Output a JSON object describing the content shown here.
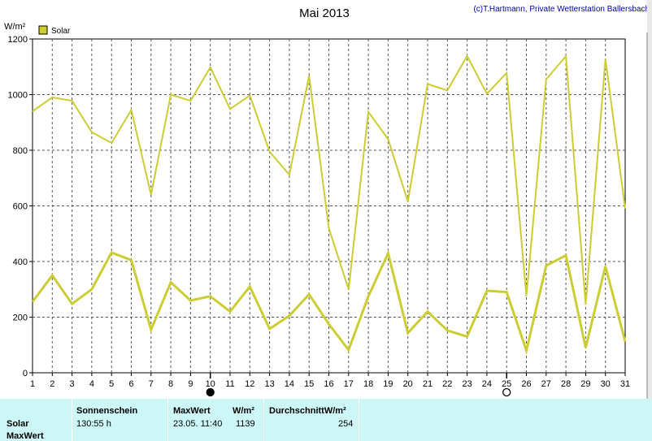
{
  "chart_data": {
    "type": "line",
    "title": "Mai 2013",
    "credit": "(c)T.Hartmann, Private Wetterstation Ballersbach",
    "ylabel": "W/m²",
    "legend": {
      "label": "Solar",
      "color": "#cccc33"
    },
    "ylim": [
      0,
      1200
    ],
    "yticks": [
      0,
      200,
      400,
      600,
      800,
      1000,
      1200
    ],
    "x": [
      1,
      2,
      3,
      4,
      5,
      6,
      7,
      8,
      9,
      10,
      11,
      12,
      13,
      14,
      15,
      16,
      17,
      18,
      19,
      20,
      21,
      22,
      23,
      24,
      25,
      26,
      27,
      28,
      29,
      30,
      31
    ],
    "series": [
      {
        "values": [
          940,
          990,
          978,
          865,
          826,
          945,
          640,
          1000,
          978,
          1098,
          948,
          997,
          795,
          712,
          1068,
          520,
          300,
          938,
          840,
          615,
          1038,
          1015,
          1139,
          1003,
          1078,
          275,
          1055,
          1138,
          245,
          1128,
          590
        ],
        "color": "#cccc33",
        "width": 2
      },
      {
        "values": [
          255,
          350,
          248,
          300,
          432,
          405,
          155,
          325,
          260,
          275,
          220,
          310,
          158,
          205,
          282,
          175,
          82,
          275,
          430,
          143,
          220,
          152,
          130,
          295,
          290,
          80,
          385,
          422,
          90,
          383,
          112
        ],
        "color": "#cccc33",
        "width": 3
      }
    ],
    "moon_markers": [
      {
        "x": 10,
        "phase": "new"
      },
      {
        "x": 25,
        "phase": "full"
      }
    ],
    "grid": true
  },
  "panel": {
    "row_labels": [
      "Solar",
      "MaxWert"
    ],
    "sunshine_header": "Sonnenschein",
    "sunshine_value": "130:55 h",
    "maxwert_header": "MaxWert",
    "maxwert_unit": "W/m²",
    "maxwert_time": "23.05.  11:40",
    "maxwert_value": "1139",
    "avg_header": "DurchschnittW/m²",
    "avg_value": "254"
  }
}
